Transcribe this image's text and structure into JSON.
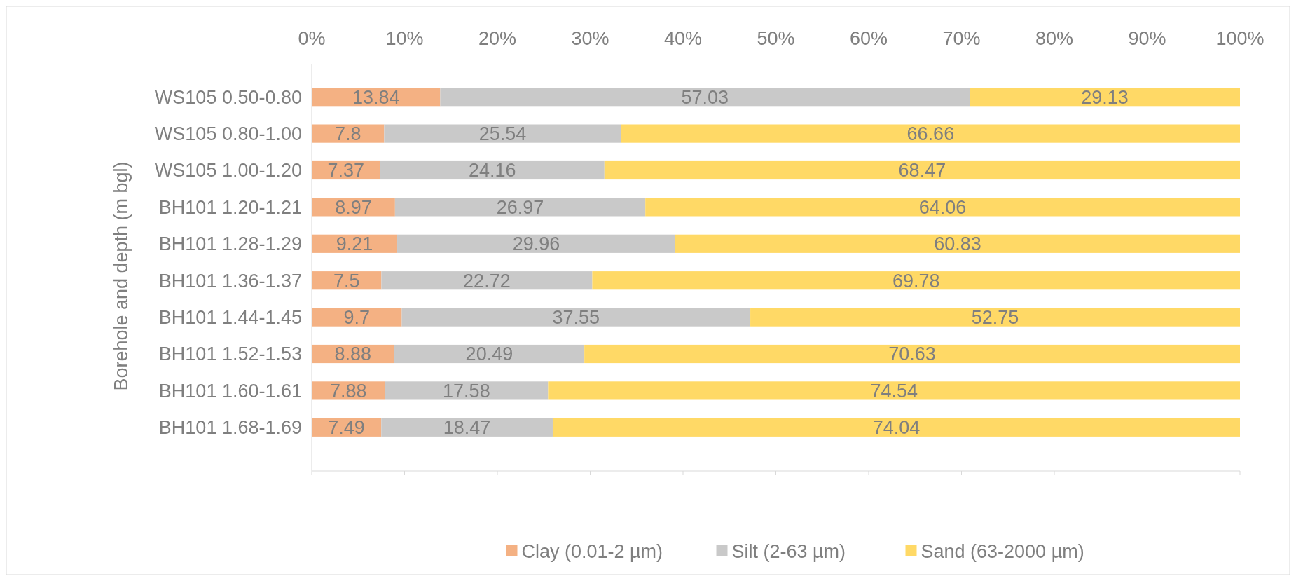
{
  "chart_data": {
    "type": "bar",
    "orientation": "horizontal",
    "stacked": true,
    "ylabel": "Borehole and depth (m bgl)",
    "categories": [
      "WS105 0.50-0.80",
      "WS105 0.80-1.00",
      "WS105 1.00-1.20",
      "BH101 1.20-1.21",
      "BH101 1.28-1.29",
      "BH101 1.36-1.37",
      "BH101 1.44-1.45",
      "BH101 1.52-1.53",
      "BH101 1.60-1.61",
      "BH101 1.68-1.69"
    ],
    "series": [
      {
        "name": "Clay (0.01-2 µm)",
        "color": "#f4b183",
        "values": [
          13.84,
          7.8,
          7.37,
          8.97,
          9.21,
          7.5,
          9.7,
          8.88,
          7.88,
          7.49
        ]
      },
      {
        "name": "Silt (2-63 µm)",
        "color": "#c9c9c9",
        "values": [
          57.03,
          25.54,
          24.16,
          26.97,
          29.96,
          22.72,
          37.55,
          20.49,
          17.58,
          18.47
        ]
      },
      {
        "name": "Sand (63-2000 µm)",
        "color": "#ffd966",
        "values": [
          29.13,
          66.66,
          68.47,
          64.06,
          60.83,
          69.78,
          52.75,
          70.63,
          74.54,
          74.04
        ]
      }
    ],
    "xlim": [
      0,
      100
    ],
    "xticks": [
      {
        "value": 0,
        "label": "0%"
      },
      {
        "value": 10,
        "label": "10%"
      },
      {
        "value": 20,
        "label": "20%"
      },
      {
        "value": 30,
        "label": "30%"
      },
      {
        "value": 40,
        "label": "40%"
      },
      {
        "value": 50,
        "label": "50%"
      },
      {
        "value": 60,
        "label": "60%"
      },
      {
        "value": 70,
        "label": "70%"
      },
      {
        "value": 80,
        "label": "80%"
      },
      {
        "value": 90,
        "label": "90%"
      },
      {
        "value": 100,
        "label": "100%"
      }
    ],
    "data_labels": true,
    "legend": "bottom"
  }
}
